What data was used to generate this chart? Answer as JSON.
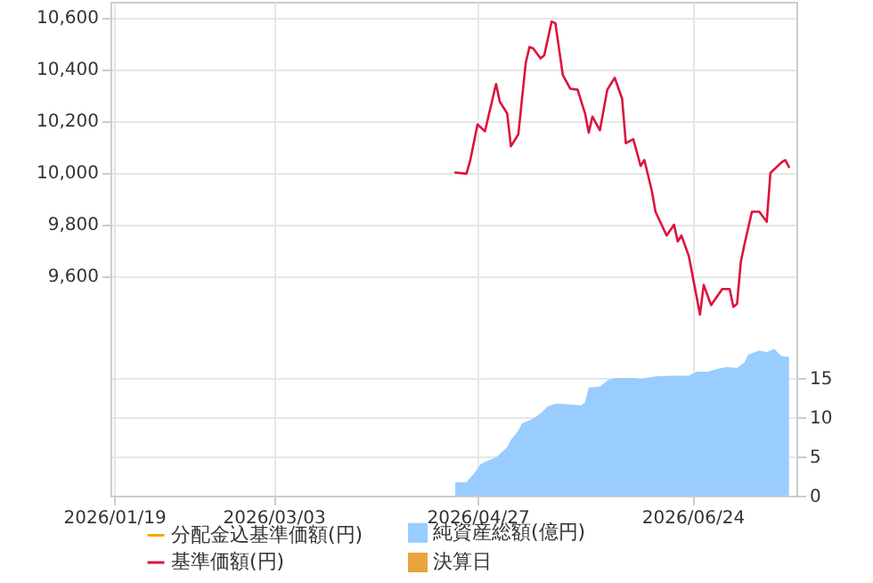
{
  "chart_data": {
    "type": "line",
    "xlim": [
      "2026-01-18",
      "2026-07-22"
    ],
    "xticks": [
      {
        "value": "2026-01-19",
        "label": "2026/01/19"
      },
      {
        "value": "2026-03-03",
        "label": "2026/03/03"
      },
      {
        "value": "2026-04-27",
        "label": "2026/04/27"
      },
      {
        "value": "2026-06-24",
        "label": "2026/06/24"
      }
    ],
    "ylim": [
      8750,
      10660
    ],
    "yticks": [
      {
        "value": 9600,
        "label": "9,600"
      },
      {
        "value": 9800,
        "label": "9,800"
      },
      {
        "value": 10000,
        "label": "10,000"
      },
      {
        "value": 10200,
        "label": "10,200"
      },
      {
        "value": 10400,
        "label": "10,400"
      },
      {
        "value": 10600,
        "label": "10,600"
      }
    ],
    "y2lim": [
      0,
      63
    ],
    "y2ticks": [
      0,
      5,
      10,
      15
    ],
    "grid": true,
    "legend": "bottom",
    "series": [
      {
        "name": "分配金込基準価額(円)",
        "color": "#ffa500",
        "type": "line"
      },
      {
        "name": "基準価額(円)",
        "color": "#dc143c",
        "type": "line",
        "x": [
          "2026-04-21",
          "2026-04-24",
          "2026-04-25",
          "2026-04-27",
          "2026-04-29",
          "2026-05-02",
          "2026-05-03",
          "2026-05-05",
          "2026-05-06",
          "2026-05-08",
          "2026-05-10",
          "2026-05-11",
          "2026-05-12",
          "2026-05-14",
          "2026-05-15",
          "2026-05-17",
          "2026-05-18",
          "2026-05-20",
          "2026-05-22",
          "2026-05-24",
          "2026-05-26",
          "2026-05-27",
          "2026-05-28",
          "2026-05-30",
          "2026-06-01",
          "2026-06-03",
          "2026-06-05",
          "2026-06-06",
          "2026-06-08",
          "2026-06-10",
          "2026-06-11",
          "2026-06-13",
          "2026-06-14",
          "2026-06-17",
          "2026-06-19",
          "2026-06-20",
          "2026-06-21",
          "2026-06-23",
          "2026-06-25",
          "2026-06-26",
          "2026-06-27",
          "2026-06-29",
          "2026-07-02",
          "2026-07-04",
          "2026-07-05",
          "2026-07-06",
          "2026-07-07",
          "2026-07-08",
          "2026-07-10",
          "2026-07-12",
          "2026-07-14",
          "2026-07-15",
          "2026-07-18",
          "2026-07-19",
          "2026-07-20"
        ],
        "values": [
          10000,
          9995,
          10044,
          10186,
          10159,
          10342,
          10274,
          10228,
          10101,
          10147,
          10423,
          10485,
          10480,
          10441,
          10453,
          10584,
          10577,
          10377,
          10324,
          10320,
          10228,
          10154,
          10216,
          10163,
          10320,
          10366,
          10285,
          10113,
          10129,
          10025,
          10048,
          9929,
          9848,
          9756,
          9798,
          9733,
          9756,
          9676,
          9526,
          9450,
          9565,
          9487,
          9549,
          9549,
          9480,
          9492,
          9653,
          9722,
          9848,
          9848,
          9809,
          9998,
          10039,
          10048,
          10021
        ]
      },
      {
        "name": "純資産総額(億円)",
        "color": "#99ccff",
        "type": "area",
        "axis": "y2",
        "x": [
          "2026-04-21",
          "2026-04-24",
          "2026-04-26",
          "2026-04-28",
          "2026-05-02",
          "2026-05-03",
          "2026-05-05",
          "2026-05-06",
          "2026-05-08",
          "2026-05-09",
          "2026-05-12",
          "2026-05-14",
          "2026-05-16",
          "2026-05-18",
          "2026-05-20",
          "2026-05-25",
          "2026-05-26",
          "2026-05-27",
          "2026-05-30",
          "2026-06-01",
          "2026-06-03",
          "2026-06-08",
          "2026-06-10",
          "2026-06-14",
          "2026-06-18",
          "2026-06-23",
          "2026-06-25",
          "2026-06-28",
          "2026-06-30",
          "2026-07-03",
          "2026-07-06",
          "2026-07-08",
          "2026-07-09",
          "2026-07-12",
          "2026-07-14",
          "2026-07-16",
          "2026-07-18",
          "2026-07-20"
        ],
        "values": [
          1.7,
          1.7,
          2.8,
          4.1,
          4.9,
          5.3,
          6.2,
          7.1,
          8.3,
          9.2,
          9.8,
          10.5,
          11.4,
          11.7,
          11.7,
          11.5,
          11.9,
          13.8,
          13.9,
          14.7,
          15.0,
          15.0,
          14.9,
          15.2,
          15.3,
          15.3,
          15.8,
          15.8,
          16.1,
          16.4,
          16.3,
          17.0,
          18.0,
          18.5,
          18.3,
          18.7,
          17.8,
          17.7
        ]
      },
      {
        "name": "決算日",
        "color": "#e8a33c",
        "type": "scatter"
      }
    ]
  }
}
